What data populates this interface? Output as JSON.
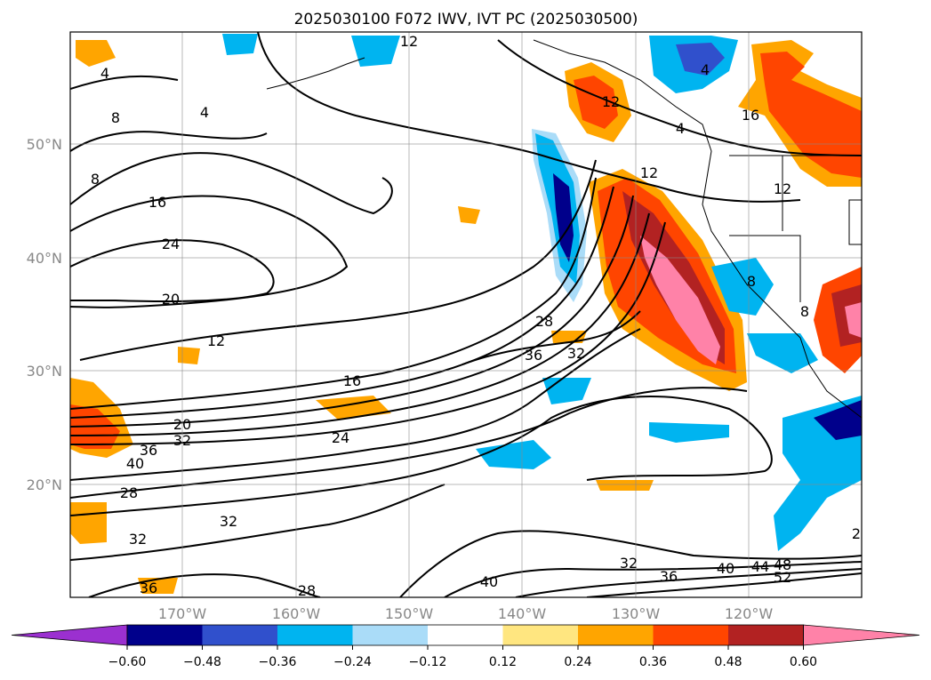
{
  "title": "2025030100 F072 IWV, IVT PC (2025030500)",
  "map": {
    "lat_labels": [
      "50°N",
      "40°N",
      "30°N",
      "20°N"
    ],
    "lon_labels": [
      "170°W",
      "160°W",
      "150°W",
      "140°W",
      "130°W",
      "120°W"
    ],
    "contour_labels": [
      "4",
      "8",
      "4",
      "4",
      "12",
      "16",
      "24",
      "20",
      "12",
      "16",
      "20",
      "32",
      "36",
      "24",
      "40",
      "28",
      "32",
      "32",
      "28",
      "36",
      "40",
      "32",
      "36",
      "40",
      "44",
      "48",
      "52",
      "12",
      "8",
      "12",
      "16",
      "4",
      "28",
      "36",
      "32",
      "8",
      "8",
      "2",
      "12"
    ]
  },
  "colorbar": {
    "ticks": [
      "−0.60",
      "−0.48",
      "−0.36",
      "−0.24",
      "−0.12",
      "0.12",
      "0.24",
      "0.36",
      "0.48",
      "0.60"
    ],
    "colors": [
      "#9b30d0",
      "#00008b",
      "#3050cc",
      "#00b4f0",
      "#aadcf8",
      "#ffffff",
      "#ffe680",
      "#ffa500",
      "#ff4500",
      "#b22222",
      "#ff82a8"
    ]
  }
}
